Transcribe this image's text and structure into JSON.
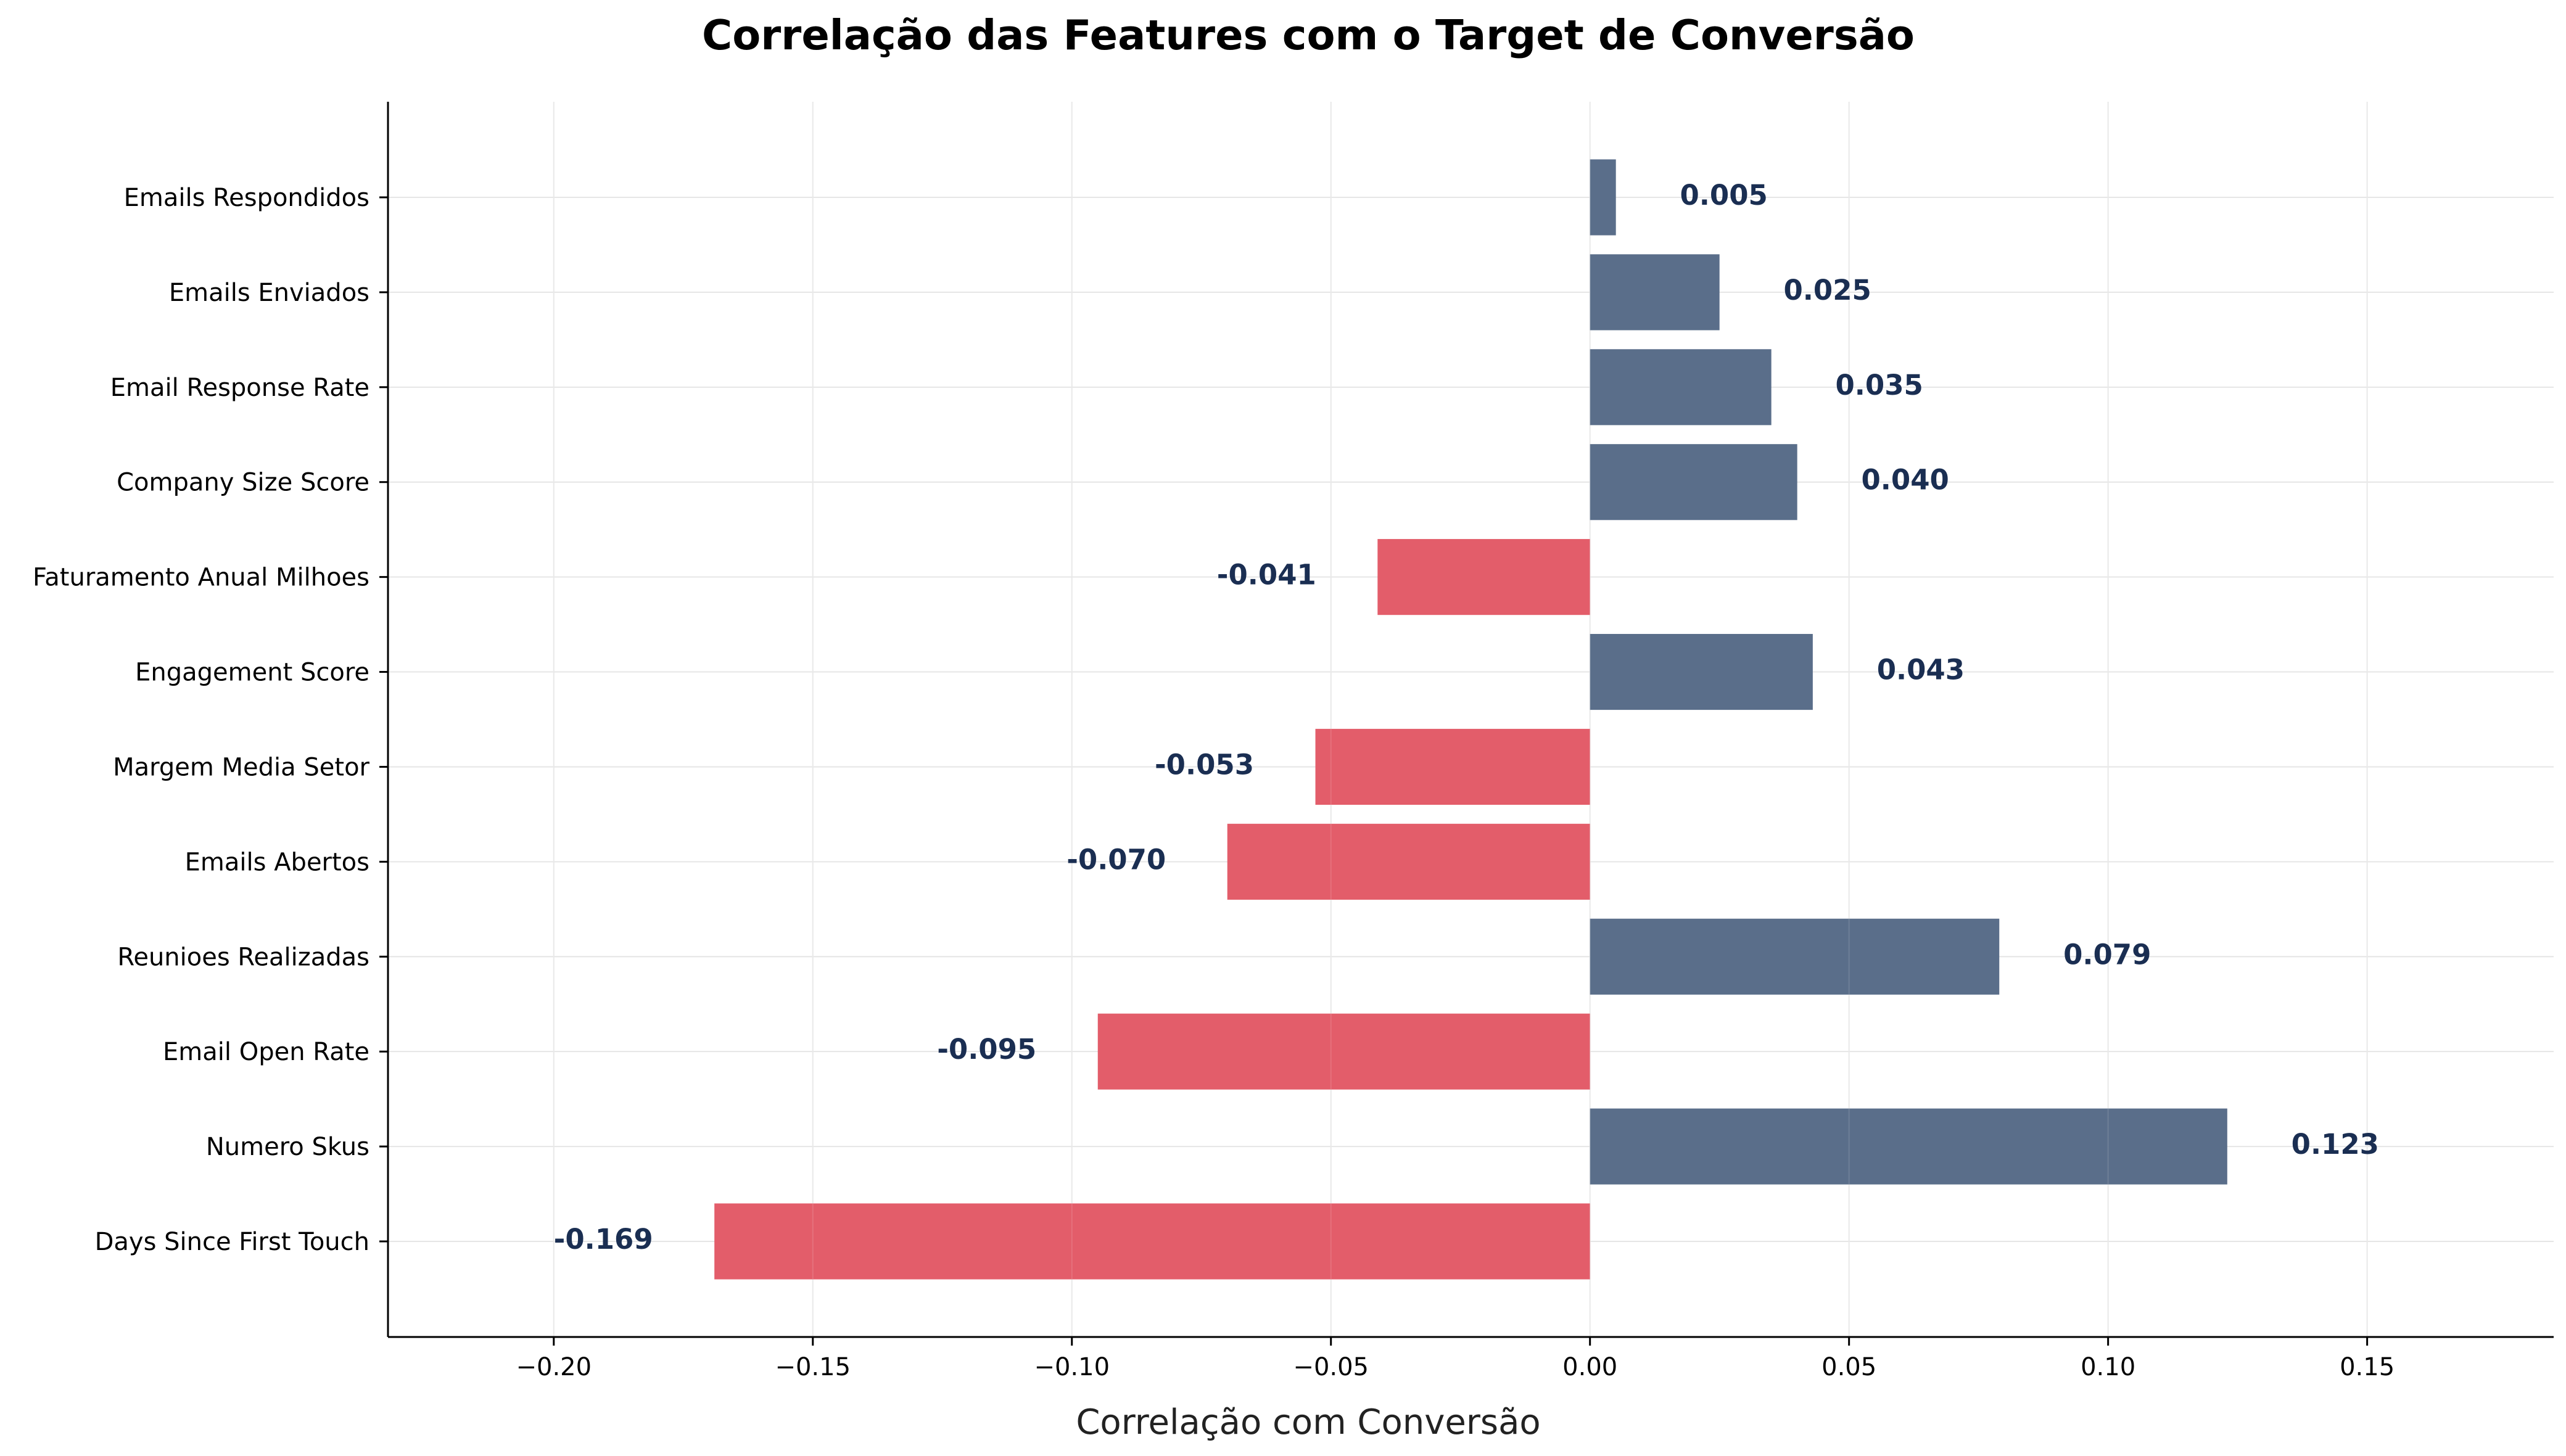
{
  "chart_data": {
    "type": "bar",
    "orientation": "horizontal",
    "title": "Correlação das Features com o Target de Conversão",
    "xlabel": "Correlação com Conversão",
    "ylabel": "",
    "xlim": [
      -0.232,
      0.186
    ],
    "xticks": [
      -0.2,
      -0.15,
      -0.1,
      -0.05,
      0.0,
      0.05,
      0.1,
      0.15
    ],
    "xtick_labels": [
      "−0.20",
      "−0.15",
      "−0.10",
      "−0.05",
      "0.00",
      "0.05",
      "0.10",
      "0.15"
    ],
    "grid": true,
    "categories": [
      "Days Since First Touch",
      "Numero Skus",
      "Email Open Rate",
      "Reunioes Realizadas",
      "Emails Abertos",
      "Margem Media Setor",
      "Engagement Score",
      "Faturamento Anual Milhoes",
      "Company Size Score",
      "Email Response Rate",
      "Emails Enviados",
      "Emails Respondidos"
    ],
    "values": [
      -0.169,
      0.123,
      -0.095,
      0.079,
      -0.07,
      -0.053,
      0.043,
      -0.041,
      0.04,
      0.035,
      0.025,
      0.005
    ],
    "value_labels": [
      "-0.169",
      "0.123",
      "-0.095",
      "0.079",
      "-0.070",
      "-0.053",
      "0.043",
      "-0.041",
      "0.040",
      "0.035",
      "0.025",
      "0.005"
    ],
    "colors": {
      "positive": "#5a6e8a",
      "negative": "#e35d6a",
      "value_label": "#1a2e52"
    }
  }
}
